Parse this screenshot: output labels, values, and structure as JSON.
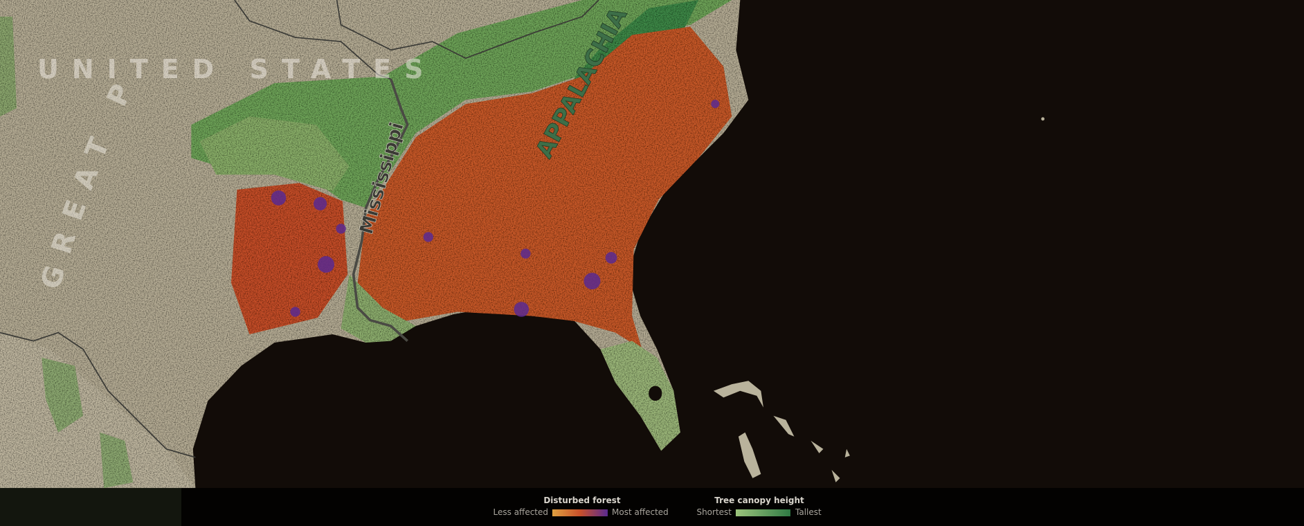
{
  "map_labels": {
    "country": "UNITED STATES",
    "region": "GREAT P",
    "river": "Mississippi",
    "mountains": "APPALACHIA"
  },
  "legend": {
    "disturbed_forest": {
      "title": "Disturbed forest",
      "low": "Less affected",
      "high": "Most affected"
    },
    "canopy_height": {
      "title": "Tree canopy height",
      "low": "Shortest",
      "high": "Tallest"
    }
  }
}
